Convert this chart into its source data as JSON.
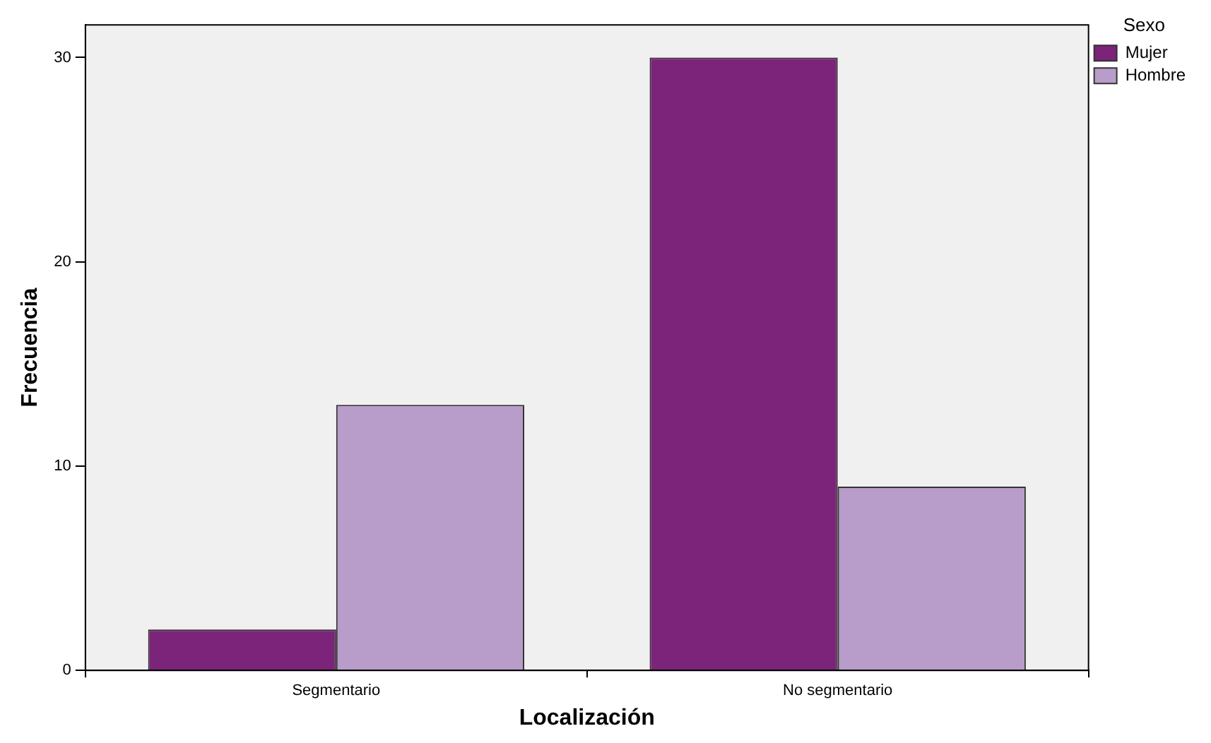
{
  "chart_data": {
    "type": "bar",
    "xlabel": "Localización",
    "ylabel": "Frecuencia",
    "legend_title": "Sexo",
    "categories": [
      "Segmentario",
      "No segmentario"
    ],
    "series": [
      {
        "name": "Mujer",
        "color": "#7b2479",
        "values": [
          2,
          30
        ]
      },
      {
        "name": "Hombre",
        "color": "#b89cc9",
        "values": [
          13,
          9
        ]
      }
    ],
    "ylim": [
      0,
      31.6
    ],
    "yticks": [
      0,
      10,
      20,
      30
    ],
    "grid": false,
    "legend": "top right"
  }
}
